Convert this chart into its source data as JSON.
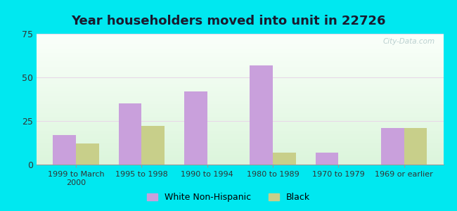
{
  "title": "Year householders moved into unit in 22726",
  "categories": [
    "1999 to March\n2000",
    "1995 to 1998",
    "1990 to 1994",
    "1980 to 1989",
    "1970 to 1979",
    "1969 or earlier"
  ],
  "white_values": [
    17,
    35,
    42,
    57,
    7,
    21
  ],
  "black_values": [
    12,
    22,
    0,
    7,
    0,
    21
  ],
  "white_color": "#c9a0dc",
  "black_color": "#c8cf8a",
  "ylim": [
    0,
    75
  ],
  "yticks": [
    0,
    25,
    50,
    75
  ],
  "background_outer": "#00e8f0",
  "watermark": "City-Data.com",
  "legend_white": "White Non-Hispanic",
  "legend_black": "Black",
  "bar_width": 0.35,
  "title_color": "#1a1a2e",
  "title_fontsize": 13
}
